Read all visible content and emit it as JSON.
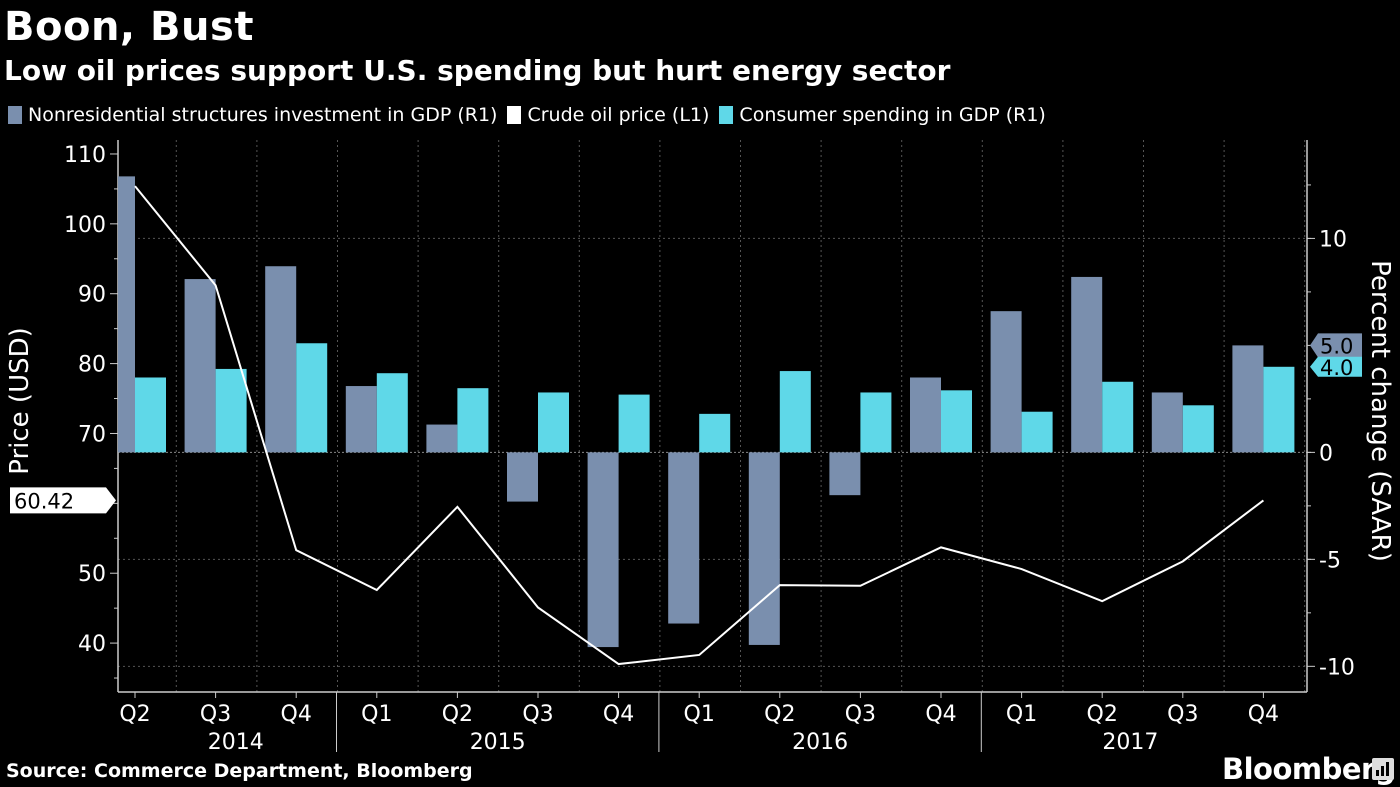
{
  "title": "Boon, Bust",
  "subtitle": "Low oil prices support U.S. spending but hurt energy sector",
  "legend": [
    {
      "label": "Nonresidential structures investment in GDP (R1)",
      "color": "#7a8fae"
    },
    {
      "label": "Crude oil price (L1)",
      "color": "#ffffff"
    },
    {
      "label": "Consumer spending in GDP (R1)",
      "color": "#5fd8e8"
    }
  ],
  "source": "Source: Commerce Department, Bloomberg",
  "brand": "Bloomberg",
  "chart_data": {
    "type": "bar",
    "categories": [
      "Q2",
      "Q3",
      "Q4",
      "Q1",
      "Q2",
      "Q3",
      "Q4",
      "Q1",
      "Q2",
      "Q3",
      "Q4",
      "Q1",
      "Q2",
      "Q3",
      "Q4"
    ],
    "year_labels": [
      "2014",
      "2015",
      "2016",
      "2017"
    ],
    "ylabel_left": "Price (USD)",
    "ylabel_right": "Percent change (SAAR)",
    "ylim_left": [
      33,
      112
    ],
    "ylim_right": [
      -11.2,
      14.6
    ],
    "left_ticks": [
      "110",
      "100",
      "90",
      "80",
      "70",
      "60",
      "50",
      "40"
    ],
    "right_ticks": [
      "10",
      "0",
      "-5",
      "-10"
    ],
    "series": [
      {
        "name": "Nonresidential structures investment in GDP (R1)",
        "axis": "right",
        "kind": "bar",
        "values": [
          12.9,
          8.1,
          8.7,
          3.1,
          1.3,
          -2.3,
          -9.1,
          -8.0,
          -9.0,
          -2.0,
          3.5,
          6.6,
          8.2,
          2.8,
          5.0
        ]
      },
      {
        "name": "Consumer spending in GDP (R1)",
        "axis": "right",
        "kind": "bar",
        "values": [
          3.5,
          3.9,
          5.1,
          3.7,
          3.0,
          2.8,
          2.7,
          1.8,
          3.8,
          2.8,
          2.9,
          1.9,
          3.3,
          2.2,
          4.0
        ]
      },
      {
        "name": "Crude oil price (L1)",
        "axis": "left",
        "kind": "line",
        "values": [
          105.4,
          91.2,
          53.3,
          47.6,
          59.5,
          45.1,
          37.0,
          38.3,
          48.3,
          48.2,
          53.7,
          50.6,
          46.0,
          51.7,
          60.42
        ]
      }
    ],
    "callouts": {
      "oil_last": "60.42",
      "nonres_last": "5.0",
      "consumer_last": "4.0"
    }
  }
}
